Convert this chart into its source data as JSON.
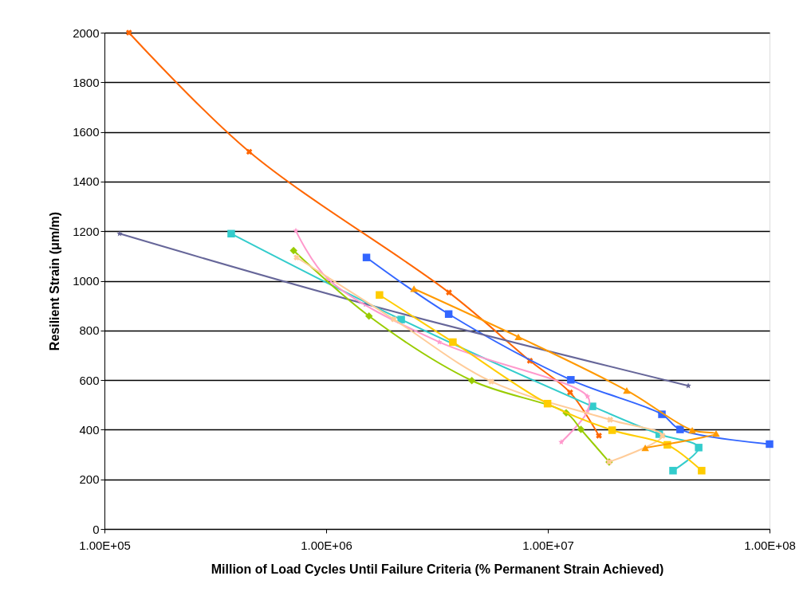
{
  "chart_data": {
    "type": "line",
    "xlabel": "Million of Load Cycles Until Failure Criteria (% Permanent Strain Achieved)",
    "ylabel": "Resilient Strain (μm/m)",
    "log": "x",
    "grid": "y",
    "xlim": [
      100000,
      100000000
    ],
    "xticks": [
      {
        "value": 100000,
        "label": "1.00E+05"
      },
      {
        "value": 1000000,
        "label": "1.00E+06"
      },
      {
        "value": 10000000,
        "label": "1.00E+07"
      },
      {
        "value": 100000000,
        "label": "1.00E+08"
      }
    ],
    "ylim": [
      0,
      2000
    ],
    "yticks": [
      0,
      200,
      400,
      600,
      800,
      1000,
      1200,
      1400,
      1600,
      1800,
      2000
    ],
    "series": [
      {
        "color": "#ff6600",
        "marker": "cross",
        "x": [
          129000,
          450000,
          3580000,
          8300000,
          12600000,
          17000000
        ],
        "values": [
          2000,
          1520,
          953,
          678,
          550,
          376
        ]
      },
      {
        "color": "#3366ff",
        "marker": "square",
        "x": [
          1520000,
          3570000,
          12700000,
          32700000,
          39500000,
          100000000
        ],
        "values": [
          1094,
          866,
          601,
          462,
          401,
          342
        ]
      },
      {
        "color": "#666699",
        "marker": "star",
        "x": [
          117000,
          1510000,
          43000000
        ],
        "values": [
          1190,
          906,
          577
        ]
      },
      {
        "color": "#33cccc",
        "marker": "square",
        "x": [
          373000,
          2180000,
          15900000,
          31800000,
          47900000,
          36700000
        ],
        "values": [
          1190,
          844,
          494,
          382,
          328,
          235
        ]
      },
      {
        "color": "#ff99cc",
        "marker": "star",
        "x": [
          730000,
          1020000,
          3240000,
          15100000,
          15100000,
          11500000
        ],
        "values": [
          1202,
          1007,
          753,
          534,
          475,
          350
        ]
      },
      {
        "color": "#99cc00",
        "marker": "diamond",
        "x": [
          713000,
          1560000,
          4540000,
          12100000,
          14100000,
          18900000
        ],
        "values": [
          1122,
          858,
          598,
          468,
          401,
          270
        ]
      },
      {
        "color": "#ffcc99",
        "marker": "cross",
        "x": [
          736000,
          2020000,
          5560000,
          19100000,
          32900000,
          18900000
        ],
        "values": [
          1094,
          845,
          594,
          440,
          376,
          270
        ]
      },
      {
        "color": "#ffcc00",
        "marker": "square",
        "x": [
          1740000,
          3730000,
          9970000,
          19500000,
          34600000,
          49400000
        ],
        "values": [
          943,
          753,
          505,
          398,
          339,
          235
        ]
      },
      {
        "color": "#ff9900",
        "marker": "triangle",
        "x": [
          2490000,
          7360000,
          22700000,
          44800000,
          57400000,
          27500000
        ],
        "values": [
          968,
          774,
          558,
          398,
          385,
          327
        ]
      }
    ]
  }
}
